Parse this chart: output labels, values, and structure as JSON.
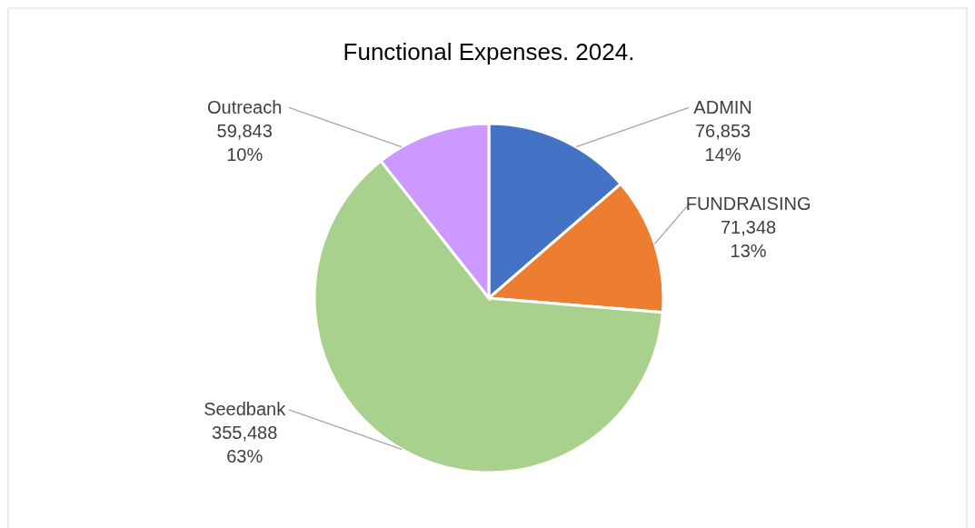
{
  "chart_data": {
    "type": "pie",
    "title": "Functional Expenses. 2024.",
    "categories": [
      "ADMIN",
      "FUNDRAISING",
      "Seedbank",
      "Outreach"
    ],
    "values": [
      76853,
      71348,
      355488,
      59843
    ],
    "colors": [
      "#4472c4",
      "#ed7d31",
      "#a9d18e",
      "#cc99ff"
    ],
    "value_labels": [
      "76,853\n14%",
      "71,348\n13%",
      "355,488\n63%",
      "59,843\n10%"
    ]
  }
}
